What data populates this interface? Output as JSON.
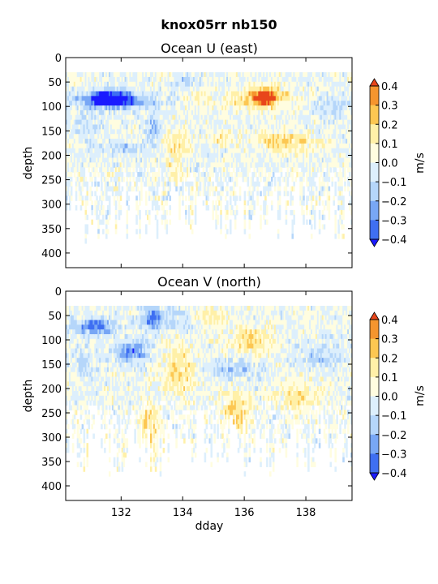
{
  "figure": {
    "title": "knox05rr nb150"
  },
  "colormap": {
    "levels": [
      -0.4,
      -0.3,
      -0.2,
      -0.1,
      0.0,
      0.1,
      0.2,
      0.3,
      0.4
    ],
    "colors": [
      "#1a1aff",
      "#3f6ff2",
      "#78a7f5",
      "#b5d6fa",
      "#ddeffc",
      "#fffde0",
      "#fff0a8",
      "#fcc752",
      "#f5952e",
      "#e8461b"
    ],
    "under_color": "#1a1aff",
    "over_color": "#e8461b"
  },
  "chart_data": [
    {
      "type": "heatmap",
      "title": "Ocean U (east)",
      "xlabel": "",
      "ylabel": "depth",
      "xlim": [
        130.2,
        139.5
      ],
      "ylim": [
        430,
        0
      ],
      "xticks": [
        "132",
        "134",
        "136",
        "138"
      ],
      "xtick_values": [
        132,
        134,
        136,
        138
      ],
      "show_xticklabels": false,
      "yticks": [
        "0",
        "50",
        "100",
        "150",
        "200",
        "250",
        "300",
        "350",
        "400"
      ],
      "ytick_values": [
        0,
        50,
        100,
        150,
        200,
        250,
        300,
        350,
        400
      ],
      "colorbar_label": "m/s",
      "colorbar_ticks": [
        "0.4",
        "0.3",
        "0.2",
        "0.1",
        "0.0",
        "−0.1",
        "−0.2",
        "−0.3",
        "−0.4"
      ],
      "colorbar_tick_values": [
        0.4,
        0.3,
        0.2,
        0.1,
        0.0,
        -0.1,
        -0.2,
        -0.3,
        -0.4
      ],
      "grid": false,
      "features": [
        {
          "t0": 130.3,
          "t1": 133.2,
          "z0": 70,
          "z1": 105,
          "v": -0.32
        },
        {
          "t0": 131.0,
          "t1": 132.3,
          "z0": 65,
          "z1": 100,
          "v": -0.4
        },
        {
          "t0": 132.8,
          "t1": 133.3,
          "z0": 120,
          "z1": 175,
          "v": -0.22
        },
        {
          "t0": 133.8,
          "t1": 134.6,
          "z0": 30,
          "z1": 70,
          "v": -0.15
        },
        {
          "t0": 135.5,
          "t1": 137.6,
          "z0": 60,
          "z1": 105,
          "v": 0.26
        },
        {
          "t0": 136.3,
          "t1": 137.0,
          "z0": 62,
          "z1": 100,
          "v": 0.38
        },
        {
          "t0": 133.3,
          "t1": 134.3,
          "z0": 150,
          "z1": 200,
          "v": 0.18
        },
        {
          "t0": 135.0,
          "t1": 135.6,
          "z0": 150,
          "z1": 185,
          "v": 0.14
        },
        {
          "t0": 136.2,
          "t1": 138.4,
          "z0": 150,
          "z1": 195,
          "v": 0.2
        },
        {
          "t0": 133.5,
          "t1": 134.0,
          "z0": 200,
          "z1": 260,
          "v": 0.16
        },
        {
          "t0": 131.0,
          "t1": 133.0,
          "z0": 170,
          "z1": 200,
          "v": -0.12
        },
        {
          "t0": 130.3,
          "t1": 131.5,
          "z0": 110,
          "z1": 160,
          "v": -0.1
        },
        {
          "t0": 138.3,
          "t1": 139.4,
          "z0": 70,
          "z1": 130,
          "v": -0.12
        },
        {
          "t0": 134.0,
          "t1": 135.0,
          "z0": 60,
          "z1": 110,
          "v": 0.1
        }
      ]
    },
    {
      "type": "heatmap",
      "title": "Ocean V (north)",
      "xlabel": "dday",
      "ylabel": "depth",
      "xlim": [
        130.2,
        139.5
      ],
      "ylim": [
        430,
        0
      ],
      "xticks": [
        "132",
        "134",
        "136",
        "138"
      ],
      "xtick_values": [
        132,
        134,
        136,
        138
      ],
      "show_xticklabels": true,
      "yticks": [
        "0",
        "50",
        "100",
        "150",
        "200",
        "250",
        "300",
        "350",
        "400"
      ],
      "ytick_values": [
        0,
        50,
        100,
        150,
        200,
        250,
        300,
        350,
        400
      ],
      "colorbar_label": "m/s",
      "colorbar_ticks": [
        "0.4",
        "0.3",
        "0.2",
        "0.1",
        "0.0",
        "−0.1",
        "−0.2",
        "−0.3",
        "−0.4"
      ],
      "colorbar_tick_values": [
        0.4,
        0.3,
        0.2,
        0.1,
        0.0,
        -0.1,
        -0.2,
        -0.3,
        -0.4
      ],
      "grid": false,
      "features": [
        {
          "t0": 130.3,
          "t1": 132.0,
          "z0": 55,
          "z1": 90,
          "v": -0.3
        },
        {
          "t0": 132.6,
          "t1": 133.5,
          "z0": 30,
          "z1": 80,
          "v": -0.32
        },
        {
          "t0": 131.8,
          "t1": 132.9,
          "z0": 100,
          "z1": 150,
          "v": -0.3
        },
        {
          "t0": 134.2,
          "t1": 135.5,
          "z0": 30,
          "z1": 70,
          "v": 0.15
        },
        {
          "t0": 135.5,
          "t1": 137.0,
          "z0": 75,
          "z1": 130,
          "v": 0.22
        },
        {
          "t0": 133.3,
          "t1": 134.4,
          "z0": 100,
          "z1": 220,
          "v": 0.18
        },
        {
          "t0": 132.6,
          "t1": 133.2,
          "z0": 220,
          "z1": 330,
          "v": 0.2
        },
        {
          "t0": 135.3,
          "t1": 136.2,
          "z0": 200,
          "z1": 290,
          "v": 0.2
        },
        {
          "t0": 137.0,
          "t1": 138.5,
          "z0": 180,
          "z1": 250,
          "v": 0.15
        },
        {
          "t0": 134.7,
          "t1": 136.6,
          "z0": 140,
          "z1": 185,
          "v": -0.15
        },
        {
          "t0": 137.5,
          "t1": 139.3,
          "z0": 110,
          "z1": 160,
          "v": -0.12
        },
        {
          "t0": 130.7,
          "t1": 131.4,
          "z0": 300,
          "z1": 360,
          "v": 0.14
        },
        {
          "t0": 130.3,
          "t1": 131.3,
          "z0": 120,
          "z1": 180,
          "v": -0.12
        },
        {
          "t0": 133.6,
          "t1": 134.5,
          "z0": 30,
          "z1": 90,
          "v": -0.12
        }
      ]
    }
  ]
}
